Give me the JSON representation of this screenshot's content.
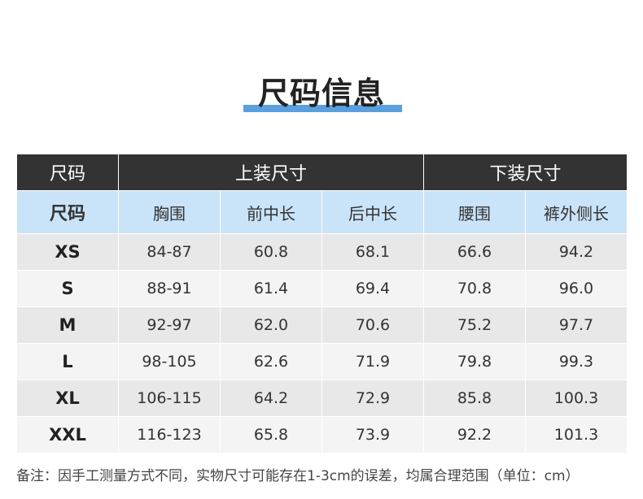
{
  "title": "尺码信息",
  "group_headers": {
    "size": "尺码",
    "top": "上装尺寸",
    "bottom": "下装尺寸"
  },
  "column_headers": [
    "尺码",
    "胸围",
    "前中长",
    "后中长",
    "腰围",
    "裤外侧长"
  ],
  "rows": [
    [
      "XS",
      "84-87",
      "60.8",
      "68.1",
      "66.6",
      "94.2"
    ],
    [
      "S",
      "88-91",
      "61.4",
      "69.4",
      "70.8",
      "96.0"
    ],
    [
      "M",
      "92-97",
      "62.0",
      "70.6",
      "75.2",
      "97.7"
    ],
    [
      "L",
      "98-105",
      "62.6",
      "71.9",
      "79.8",
      "99.3"
    ],
    [
      "XL",
      "106-115",
      "64.2",
      "72.9",
      "85.8",
      "100.3"
    ],
    [
      "XXL",
      "116-123",
      "65.8",
      "73.9",
      "92.2",
      "101.3"
    ]
  ],
  "note": "备注：因手工测量方式不同，实物尺寸可能存在1-3cm的误差，均属合理范围（单位：cm）",
  "colors": {
    "accent": "#5aa0e0",
    "group_header_bg": "#333333",
    "column_header_bg": "#c9e3f8"
  }
}
